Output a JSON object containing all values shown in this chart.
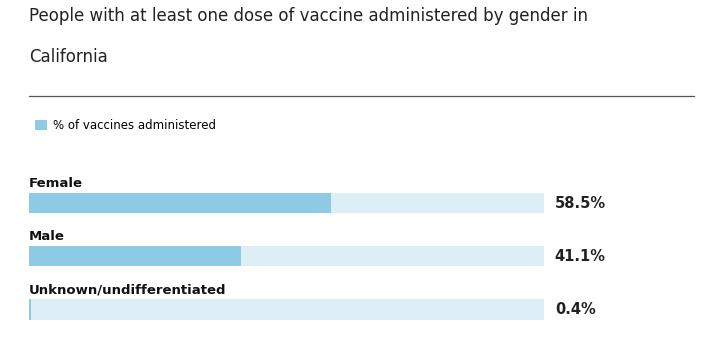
{
  "title_line1": "People with at least one dose of vaccine administered by gender in",
  "title_line2": "California",
  "legend_label": "% of vaccines administered",
  "categories": [
    "Female",
    "Male",
    "Unknown/undifferentiated"
  ],
  "values": [
    58.5,
    41.1,
    0.4
  ],
  "labels": [
    "58.5%",
    "41.1%",
    "0.4%"
  ],
  "bar_color": "#8ecae6",
  "bg_bar_color": "#ddeef7",
  "title_fontsize": 12,
  "value_fontsize": 10.5,
  "legend_fontsize": 8.5,
  "category_fontsize": 9.5,
  "background_color": "#ffffff",
  "bar_height": 0.38,
  "title_color": "#222222",
  "category_color": "#111111",
  "value_color": "#222222",
  "line_color": "#555555"
}
